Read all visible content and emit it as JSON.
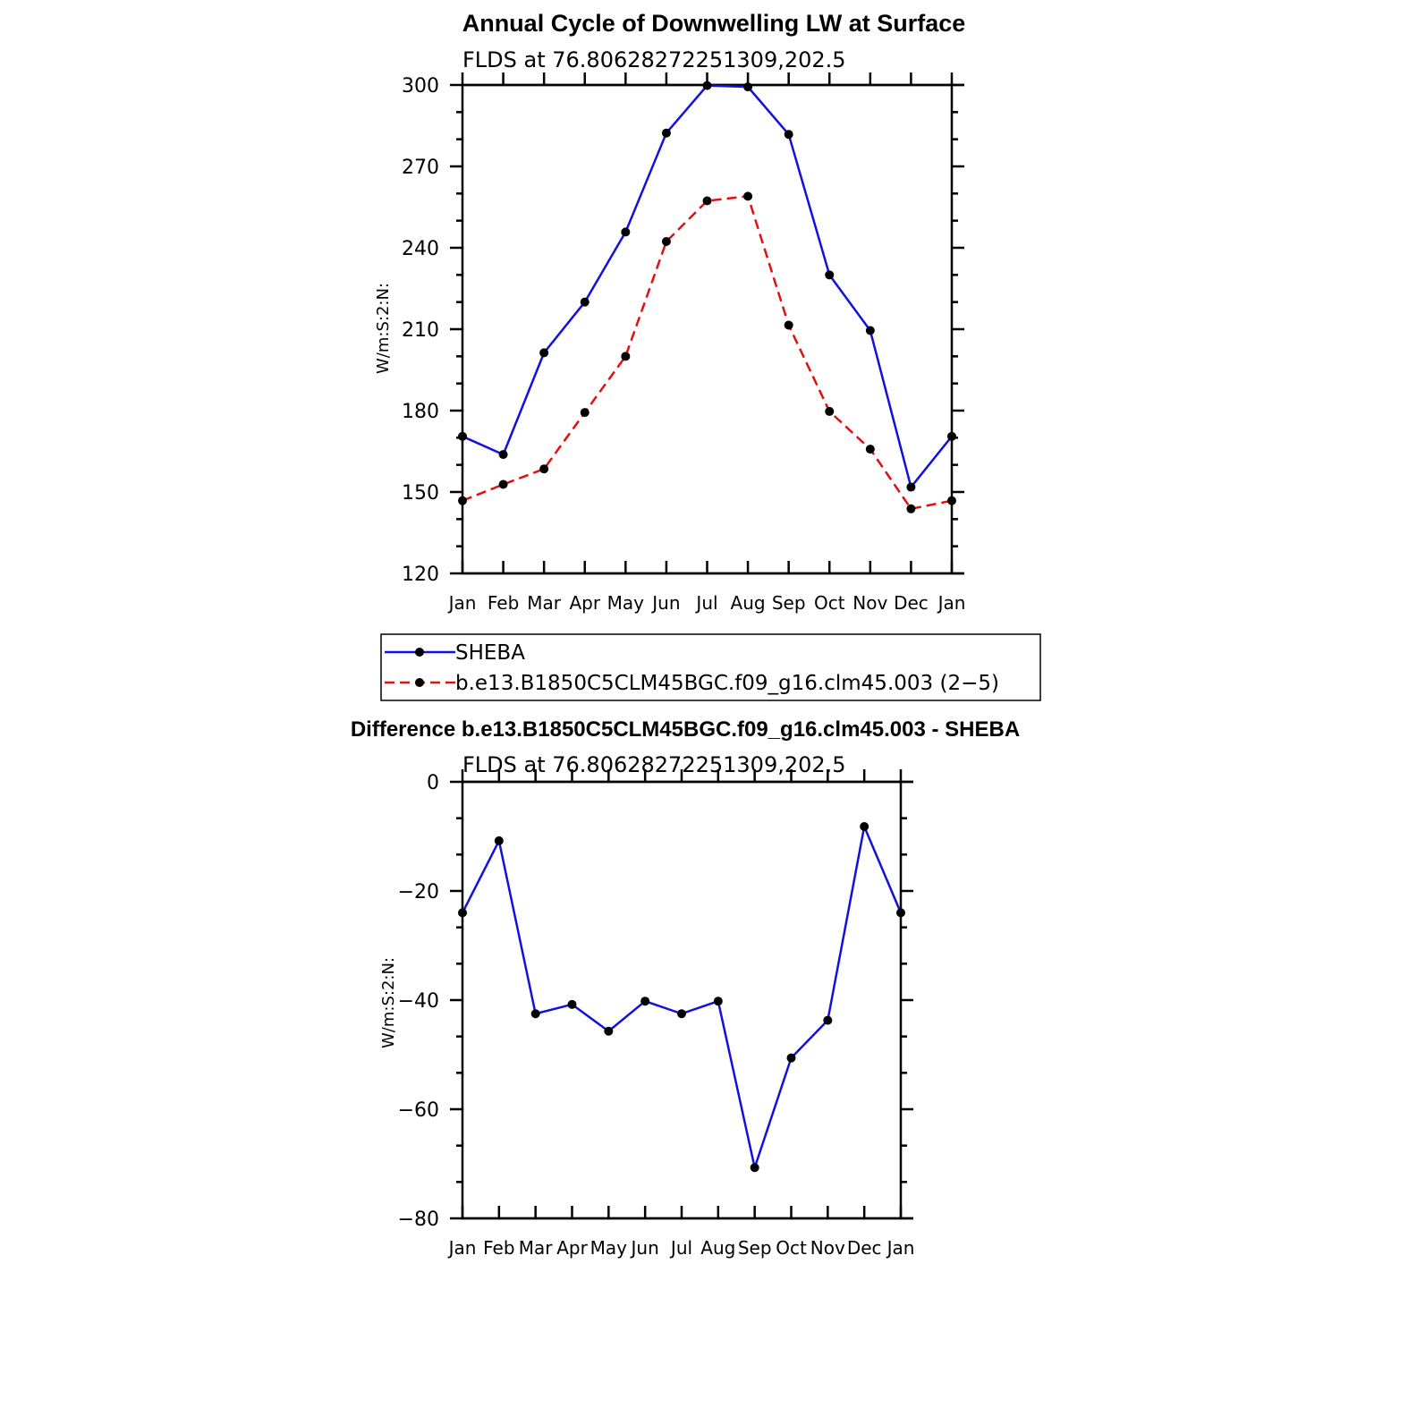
{
  "colors": {
    "sheba": "#1010e0",
    "model": "#e01010",
    "marker": "#000000"
  },
  "chart_data": [
    {
      "type": "line",
      "title": "Annual Cycle of Downwelling LW at Surface",
      "subtitle": "FLDS at 76.80628272251309,202.5",
      "ylabel": "W/m:S:2:N:",
      "xlabel": "",
      "categories": [
        "Jan",
        "Feb",
        "Mar",
        "Apr",
        "May",
        "Jun",
        "Jul",
        "Aug",
        "Sep",
        "Oct",
        "Nov",
        "Dec",
        "Jan"
      ],
      "ylim": [
        120,
        300
      ],
      "yticks": [
        120,
        150,
        180,
        210,
        240,
        270,
        300
      ],
      "series": [
        {
          "name": "SHEBA",
          "style": "solid",
          "values": [
            170.5,
            163.8,
            201.3,
            220.0,
            245.8,
            282.3,
            299.8,
            299.3,
            281.8,
            230.0,
            209.5,
            151.8,
            170.5
          ]
        },
        {
          "name": "b.e13.B1850C5CLM45BGC.f09_g16.clm45.003 (2−5)",
          "style": "dashed",
          "values": [
            146.8,
            152.8,
            158.5,
            179.3,
            200.0,
            242.3,
            257.3,
            259.0,
            211.5,
            179.7,
            165.8,
            143.8,
            146.8
          ]
        }
      ],
      "legend": "below"
    },
    {
      "type": "line",
      "title": "Difference b.e13.B1850C5CLM45BGC.f09_g16.clm45.003 - SHEBA",
      "subtitle": "FLDS at 76.80628272251309,202.5",
      "ylabel": "W/m:S:2:N:",
      "xlabel": "",
      "categories": [
        "Jan",
        "Feb",
        "Mar",
        "Apr",
        "May",
        "Jun",
        "Jul",
        "Aug",
        "Sep",
        "Oct",
        "Nov",
        "Dec",
        "Jan"
      ],
      "ylim": [
        -80,
        0
      ],
      "yticks": [
        -80,
        -60,
        -40,
        -20,
        0
      ],
      "ytick_labels": [
        "−80",
        "−60",
        "−40",
        "−20",
        "0"
      ],
      "series": [
        {
          "style": "solid",
          "values": [
            -24.0,
            -10.8,
            -42.5,
            -40.8,
            -45.7,
            -40.2,
            -42.5,
            -40.2,
            -70.7,
            -50.6,
            -43.7,
            -8.2,
            -24.0
          ]
        }
      ]
    }
  ]
}
